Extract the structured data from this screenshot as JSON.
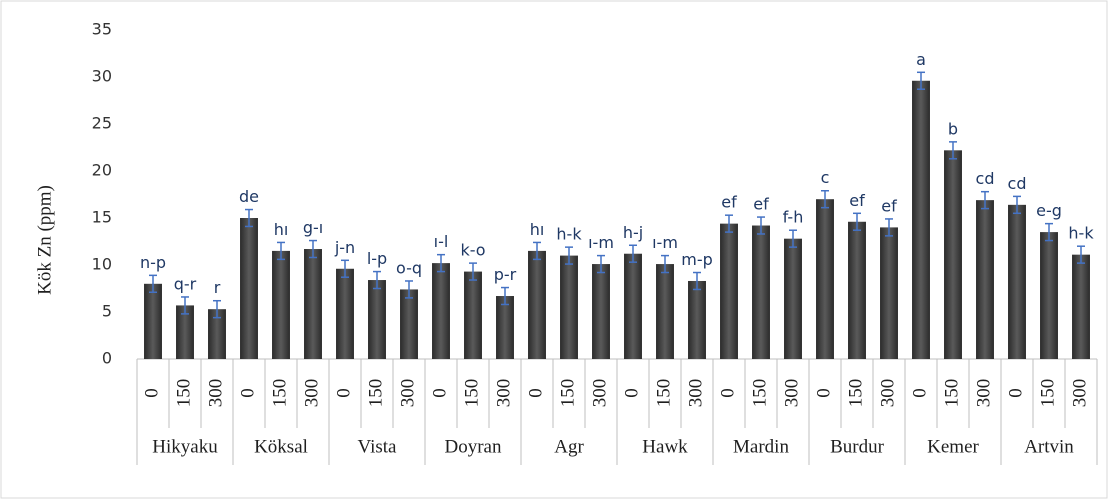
{
  "chart_data": {
    "type": "bar",
    "y_label": "Kök Zn (ppm)",
    "groups": [
      "Hikyaku",
      "Köksal",
      "Vista",
      "Doyran",
      "Agr",
      "Hawk",
      "Mardin",
      "Burdur",
      "Kemer",
      "Artvin"
    ],
    "categories": [
      "0",
      "150",
      "300",
      "0",
      "150",
      "300",
      "0",
      "150",
      "300",
      "0",
      "150",
      "300",
      "0",
      "150",
      "300",
      "0",
      "150",
      "300",
      "0",
      "150",
      "300",
      "0",
      "150",
      "300",
      "0",
      "150",
      "300",
      "0",
      "150",
      "300"
    ],
    "values": [
      8.0,
      5.7,
      5.3,
      15.0,
      11.5,
      11.7,
      9.6,
      8.4,
      7.4,
      10.2,
      9.3,
      6.7,
      11.5,
      11.0,
      10.1,
      11.2,
      10.1,
      8.3,
      14.4,
      14.2,
      12.8,
      17.0,
      14.6,
      14.0,
      29.6,
      22.2,
      16.9,
      16.4,
      13.5,
      11.1
    ],
    "errors": [
      0.9,
      0.9,
      0.9,
      0.9,
      0.9,
      0.9,
      0.9,
      0.9,
      0.9,
      0.9,
      0.9,
      0.9,
      0.9,
      0.9,
      0.9,
      0.9,
      0.9,
      0.9,
      0.9,
      0.9,
      0.9,
      0.9,
      0.9,
      0.9,
      0.9,
      0.9,
      0.9,
      0.9,
      0.9,
      0.9
    ],
    "letters": [
      "n-p",
      "q-r",
      "r",
      "de",
      "hı",
      "g-ı",
      "j-n",
      "l-p",
      "o-q",
      "ı-l",
      "k-o",
      "p-r",
      "hı",
      "h-k",
      "ı-m",
      "h-j",
      "ı-m",
      "m-p",
      "ef",
      "ef",
      "f-h",
      "c",
      "ef",
      "ef",
      "a",
      "b",
      "cd",
      "cd",
      "e-g",
      "h-k"
    ],
    "color": "#404040",
    "error_color": "#4472c4",
    "ylim": [
      0,
      35
    ],
    "yticks": [
      0,
      5,
      10,
      15,
      20,
      25,
      30,
      35
    ],
    "grid": false
  }
}
